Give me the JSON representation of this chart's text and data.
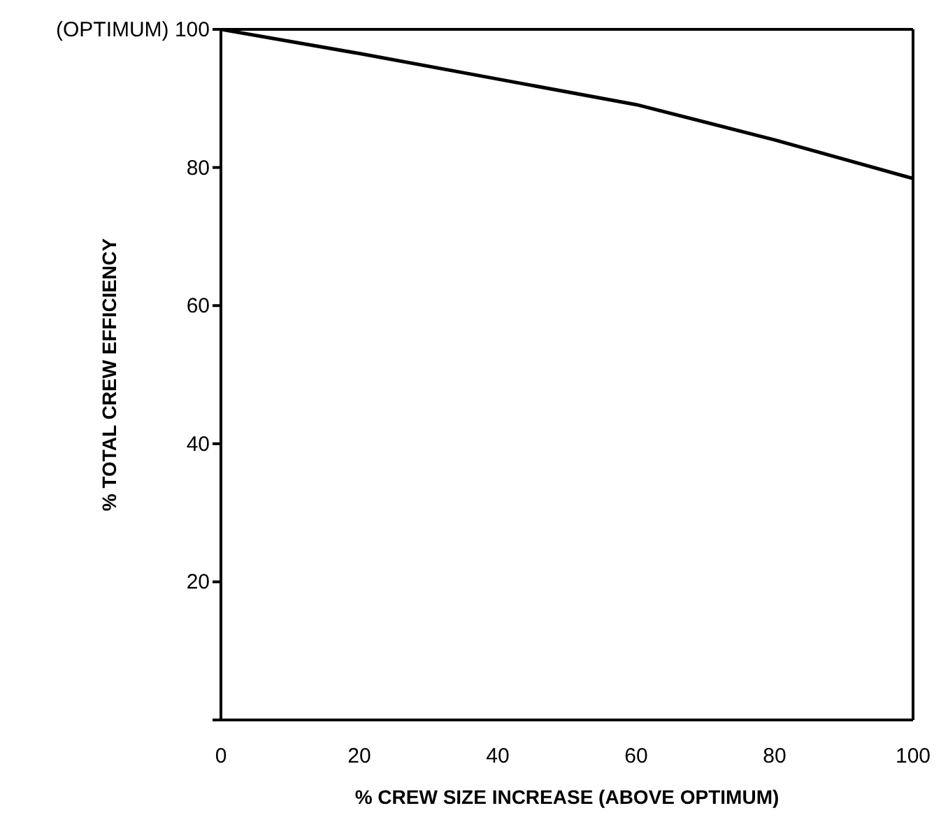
{
  "chart_data": {
    "type": "line",
    "xlabel": "% CREW SIZE INCREASE (ABOVE OPTIMUM)",
    "ylabel": "% TOTAL CREW EFFICIENCY",
    "x": [
      0,
      20,
      40,
      60,
      80,
      100
    ],
    "series": [
      {
        "color": "#000000",
        "values": [
          100,
          96.5,
          92.8,
          89.1,
          84,
          78.4
        ]
      }
    ],
    "xlim": [
      0,
      100
    ],
    "xticks": [
      0,
      20,
      40,
      60,
      80,
      100
    ],
    "ylim": [
      0,
      100
    ],
    "yticks": [
      {
        "value": 0,
        "label": null
      },
      20,
      40,
      60,
      80,
      {
        "value": 100,
        "label": "(OPTIMUM) 100"
      }
    ],
    "grid": false,
    "legend": false,
    "marker": "none",
    "line_style": "solid"
  }
}
